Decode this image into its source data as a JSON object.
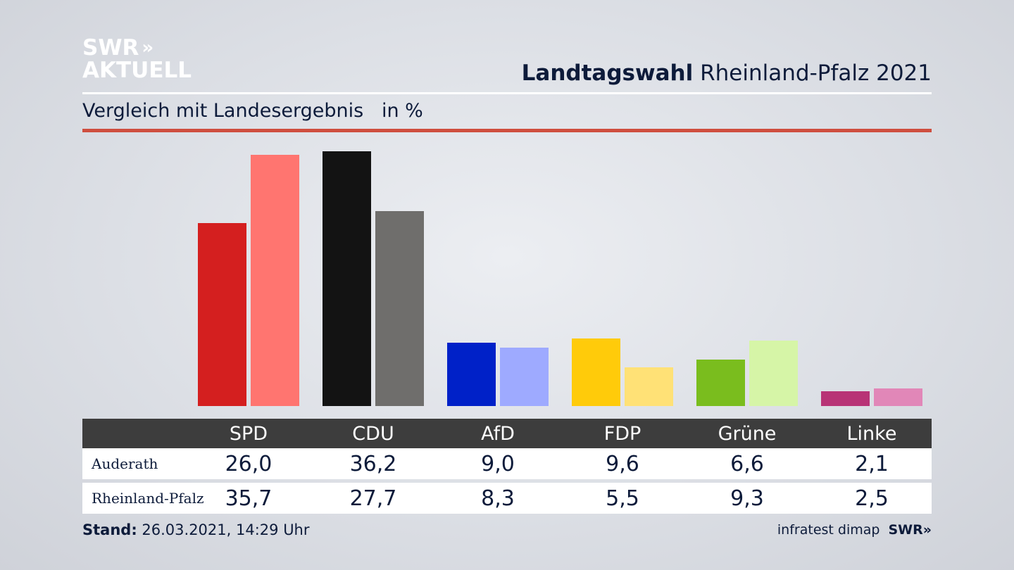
{
  "logo": {
    "line1": "SWR",
    "line1_chevrons": "»",
    "line2": "AKTUELL"
  },
  "header": {
    "title_bold": "Landtagswahl",
    "title_rest": "Rheinland-Pfalz 2021"
  },
  "subtitle": {
    "text": "Vergleich mit Landesergebnis",
    "unit": "in %"
  },
  "colors": {
    "accent_rule": "#cf4e3f",
    "table_header": "#3d3d3d",
    "text": "#0d1b3a"
  },
  "chart_data": {
    "type": "bar",
    "title": "Vergleich mit Landesergebnis",
    "ylabel": "in %",
    "categories": [
      "SPD",
      "CDU",
      "AfD",
      "FDP",
      "Grüne",
      "Linke"
    ],
    "series": [
      {
        "name": "Auderath",
        "values": [
          26.0,
          36.2,
          9.0,
          9.6,
          6.6,
          2.1
        ],
        "value_labels": [
          "26,0",
          "36,2",
          "9,0",
          "9,6",
          "6,6",
          "2,1"
        ],
        "colors": [
          "#d41f1f",
          "#131313",
          "#0021c8",
          "#ffcb0a",
          "#7abd1e",
          "#b83376"
        ]
      },
      {
        "name": "Rheinland-Pfalz",
        "values": [
          35.7,
          27.7,
          8.3,
          5.5,
          9.3,
          2.5
        ],
        "value_labels": [
          "35,7",
          "27,7",
          "8,3",
          "5,5",
          "9,3",
          "2,5"
        ],
        "colors": [
          "#ff7570",
          "#6f6e6c",
          "#9eaaff",
          "#ffe176",
          "#d6f5a7",
          "#e187b8"
        ]
      }
    ],
    "ylim": [
      0,
      36.2
    ],
    "grid": false,
    "legend": "table-below"
  },
  "footer": {
    "stand_label": "Stand:",
    "stand_value": "26.03.2021, 14:29 Uhr",
    "source": "infratest dimap",
    "source_logo": "SWR»"
  }
}
